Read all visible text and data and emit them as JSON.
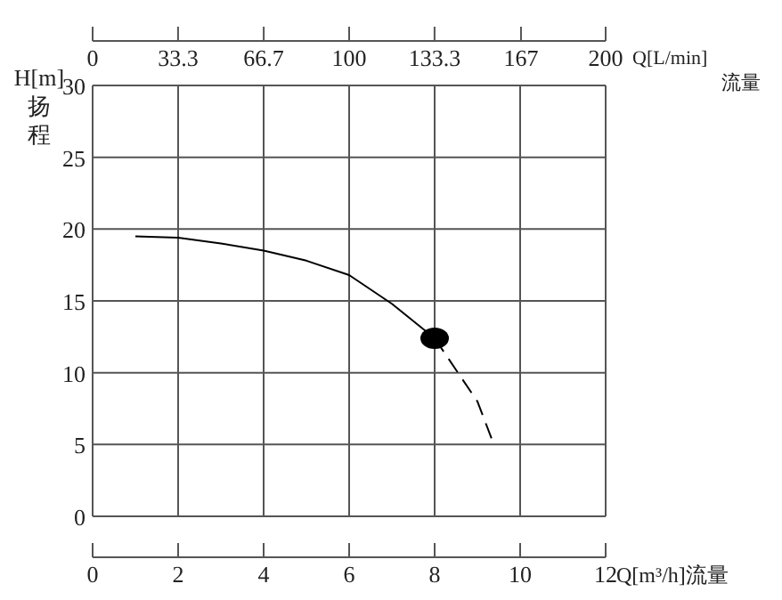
{
  "chart_data": {
    "type": "line",
    "xlabel": "Q[m³/h]流量",
    "x2label": "Q[L/min]\n流量",
    "ylabel": "H[m]\n扬程",
    "xlim": [
      0,
      12
    ],
    "xticks": [
      0,
      2,
      4,
      6,
      8,
      10,
      12
    ],
    "x2lim": [
      0,
      200
    ],
    "x2ticks": [
      0,
      33.3,
      66.7,
      100,
      133.3,
      167,
      200
    ],
    "ylim": [
      0,
      30
    ],
    "yticks": [
      0,
      5,
      10,
      15,
      20,
      25,
      30
    ],
    "grid": true,
    "series": [
      {
        "color": "#000000",
        "line_style": "solid",
        "x": [
          1,
          2,
          3,
          4,
          5,
          6,
          7,
          8
        ],
        "values": [
          19.5,
          19.4,
          19.0,
          18.5,
          17.8,
          16.8,
          14.8,
          12.4
        ]
      },
      {
        "color": "#000000",
        "line_style": "dashed",
        "x": [
          8,
          8.5,
          9,
          9.36
        ],
        "values": [
          12.4,
          10.2,
          8.0,
          5.2
        ]
      },
      {
        "type": "scatter",
        "marker": "circle",
        "color": "#000000",
        "x": [
          8
        ],
        "values": [
          12.4
        ]
      }
    ]
  }
}
